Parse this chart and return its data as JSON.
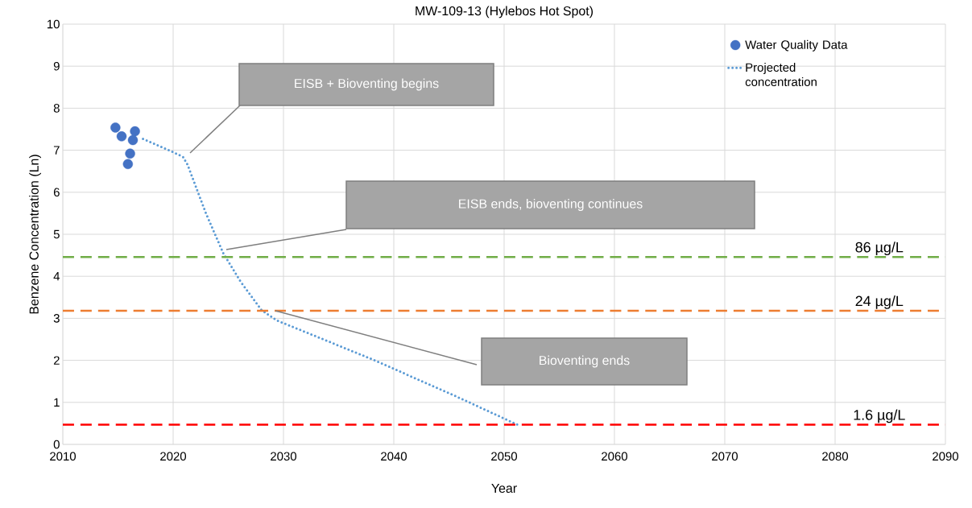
{
  "chart_data": {
    "type": "scatter",
    "title": "MW-109-13 (Hylebos Hot Spot)",
    "xlabel": "Year",
    "ylabel": "Benzene Concentration (Ln)",
    "xlim": [
      2010,
      2090
    ],
    "xticks": [
      2010,
      2020,
      2030,
      2040,
      2050,
      2060,
      2070,
      2080,
      2090
    ],
    "ylim": [
      0,
      10
    ],
    "yticks": [
      0,
      1,
      2,
      3,
      4,
      5,
      6,
      7,
      8,
      9,
      10
    ],
    "grid": true,
    "legend": "top right",
    "series": [
      {
        "name": "Water Quality Data",
        "marker": "circle",
        "color": "#4472c4",
        "x": [
          2014.77,
          2015.33,
          2016.54,
          2016.35,
          2016.1,
          2015.9
        ],
        "values": [
          7.54,
          7.33,
          7.45,
          7.24,
          6.92,
          6.67
        ]
      },
      {
        "name": "Projected concentration",
        "type": "line",
        "marker": "none",
        "line_style": "dotted",
        "color": "#5b9bd5",
        "x": [
          2017.27,
          2020.2,
          2020.9,
          2021.3,
          2022.97,
          2024.56,
          2026.1,
          2028.0,
          2029.4,
          2038.1,
          2046.1,
          2051.2
        ],
        "values": [
          7.27,
          6.93,
          6.84,
          6.66,
          5.5,
          4.54,
          3.88,
          3.2,
          2.95,
          2.02,
          1.09,
          0.47
        ]
      }
    ],
    "ref_lines": [
      {
        "axis": "y",
        "value": 4.46,
        "label": "86 µg/L",
        "color": "#70ad47",
        "line_style": "dashed"
      },
      {
        "axis": "y",
        "value": 3.18,
        "label": "24 µg/L",
        "color": "#ed7d31",
        "line_style": "dashed"
      },
      {
        "axis": "y",
        "value": 0.47,
        "label": "1.6 µg/L",
        "color": "#ff0000",
        "line_style": "dashed"
      }
    ],
    "annotations": [
      "EISB + Bioventing begins",
      "EISB ends, bioventing continues",
      "Bioventing ends"
    ]
  }
}
